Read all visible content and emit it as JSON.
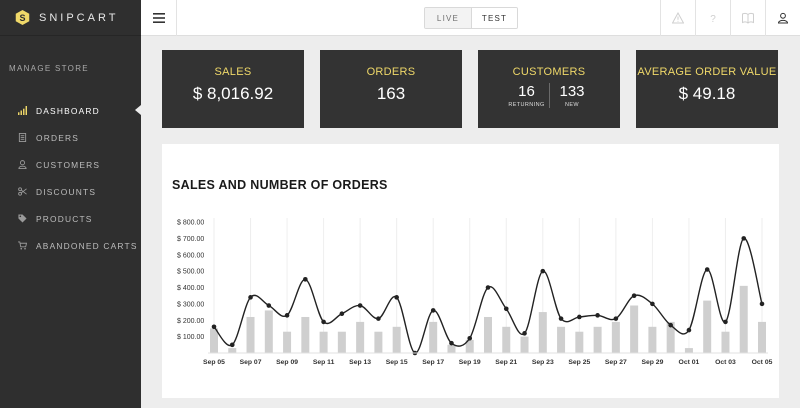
{
  "app": {
    "name": "SNIPCART"
  },
  "sidebar": {
    "section_title": "MANAGE STORE",
    "items": [
      {
        "label": "DASHBOARD",
        "icon": "bar-chart-icon",
        "active": true
      },
      {
        "label": "ORDERS",
        "icon": "document-icon",
        "active": false
      },
      {
        "label": "CUSTOMERS",
        "icon": "user-icon",
        "active": false
      },
      {
        "label": "DISCOUNTS",
        "icon": "scissors-icon",
        "active": false
      },
      {
        "label": "PRODUCTS",
        "icon": "tag-icon",
        "active": false
      },
      {
        "label": "ABANDONED CARTS",
        "icon": "cart-icon",
        "active": false
      }
    ]
  },
  "topbar": {
    "mode_live": "LIVE",
    "mode_test": "TEST",
    "active_mode": "TEST",
    "icons": [
      "warning-icon",
      "help-icon",
      "book-icon",
      "user-icon"
    ]
  },
  "stats": {
    "sales": {
      "label": "SALES",
      "value": "$ 8,016.92"
    },
    "orders": {
      "label": "ORDERS",
      "value": "163"
    },
    "customers": {
      "label": "CUSTOMERS",
      "returning": "16",
      "returning_label": "RETURNING",
      "new": "133",
      "new_label": "NEW"
    },
    "aov": {
      "label": "AVERAGE ORDER VALUE",
      "value": "$ 49.18"
    }
  },
  "colors": {
    "accent": "#efd869",
    "card_bg": "#333333",
    "sidebar_bg": "#2f2f2f"
  },
  "chart_title": "SALES AND NUMBER OF ORDERS",
  "chart_data": {
    "type": "bar",
    "title": "SALES AND NUMBER OF ORDERS",
    "ylim": [
      0,
      800
    ],
    "yticks": [
      "$ 100.00",
      "$ 200.00",
      "$ 300.00",
      "$ 400.00",
      "$ 500.00",
      "$ 600.00",
      "$ 700.00",
      "$ 800.00"
    ],
    "ytick_values": [
      100,
      200,
      300,
      400,
      500,
      600,
      700,
      800
    ],
    "xtick_labels": [
      "Sep 05",
      "Sep 07",
      "Sep 09",
      "Sep 11",
      "Sep 13",
      "Sep 15",
      "Sep 17",
      "Sep 19",
      "Sep 21",
      "Sep 23",
      "Sep 25",
      "Sep 27",
      "Sep 29",
      "Oct 01",
      "Oct 03",
      "Oct 05"
    ],
    "categories": [
      "Sep 05",
      "Sep 06",
      "Sep 07",
      "Sep 08",
      "Sep 09",
      "Sep 10",
      "Sep 11",
      "Sep 12",
      "Sep 13",
      "Sep 14",
      "Sep 15",
      "Sep 16",
      "Sep 17",
      "Sep 18",
      "Sep 19",
      "Sep 20",
      "Sep 21",
      "Sep 22",
      "Sep 23",
      "Sep 24",
      "Sep 25",
      "Sep 26",
      "Sep 27",
      "Sep 28",
      "Sep 29",
      "Sep 30",
      "Oct 01",
      "Oct 02",
      "Oct 03",
      "Oct 04",
      "Oct 05"
    ],
    "series": [
      {
        "type": "bar",
        "values": [
          150,
          30,
          220,
          260,
          130,
          220,
          130,
          130,
          190,
          130,
          160,
          0,
          190,
          50,
          80,
          220,
          160,
          100,
          250,
          160,
          130,
          160,
          190,
          290,
          160,
          190,
          30,
          320,
          130,
          410,
          190
        ]
      },
      {
        "type": "line",
        "values": [
          160,
          50,
          340,
          290,
          230,
          450,
          190,
          240,
          290,
          210,
          340,
          0,
          260,
          60,
          90,
          400,
          270,
          120,
          500,
          210,
          220,
          230,
          210,
          350,
          300,
          170,
          140,
          510,
          190,
          700,
          300
        ]
      }
    ]
  }
}
